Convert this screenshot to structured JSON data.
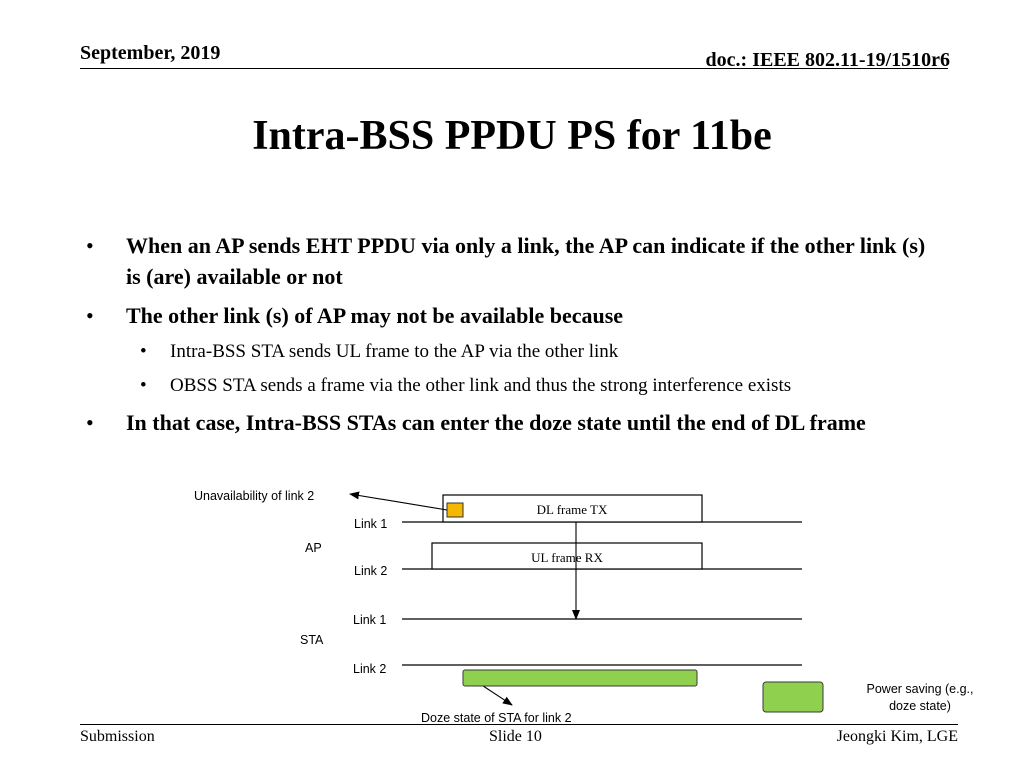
{
  "header": {
    "date": "September, 2019",
    "doc_id": "doc.: IEEE 802.11-19/1510r6"
  },
  "title": "Intra-BSS PPDU PS for 11be",
  "bullets": [
    {
      "text": "When an AP sends EHT PPDU via only a link, the AP can indicate if the other link (s) is (are) available or not"
    },
    {
      "text": "The other link (s) of AP may not be available because"
    },
    {
      "text": "Intra-BSS STA sends UL frame to the AP via the other link"
    },
    {
      "text": "OBSS STA sends a frame via the other link and thus the strong interference exists"
    },
    {
      "text": "In that case, Intra-BSS STAs can enter the doze state until the end of DL frame"
    }
  ],
  "bullet_glyph": "•",
  "diagram": {
    "unavailability_label": "Unavailability of link 2",
    "ap_label": "AP",
    "sta_label": "STA",
    "ap_link1": "Link 1",
    "ap_link2": "Link 2",
    "sta_link1": "Link 1",
    "sta_link2": "Link 2",
    "dl_frame": "DL frame TX",
    "ul_frame": "UL frame RX",
    "doze_label": "Doze state of STA for link 2",
    "legend_line1": "Power saving (e.g.,",
    "legend_line2": "doze state)",
    "colors": {
      "unavailable_marker": "#f5b800",
      "doze": "#8fd14f",
      "doze_border": "#3a3a3a"
    }
  },
  "footer": {
    "left": "Submission",
    "center": "Slide 10",
    "right": "Jeongki Kim, LGE"
  }
}
